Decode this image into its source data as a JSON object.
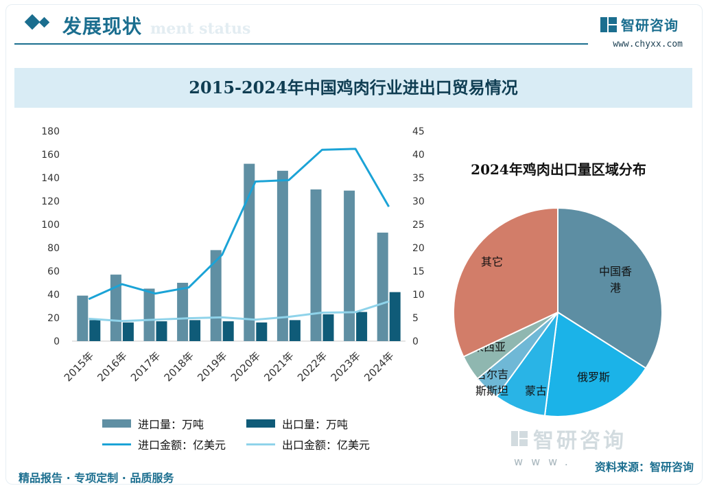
{
  "header": {
    "section_title": "发展现状",
    "section_subtitle": "ment status",
    "brand": "智研咨询",
    "url": "www.chyxx.com"
  },
  "footer": {
    "slogan": "精品报告 · 专项定制 · 品质服务",
    "source": "资料来源：智研咨询",
    "watermark_brand": "智研咨询",
    "watermark_url": "www."
  },
  "colors": {
    "import_volume": "#5f8fa3",
    "export_volume": "#0f5b78",
    "import_value": "#1ba3d6",
    "export_value": "#8fd3ea",
    "accent": "#1b6e8f"
  },
  "chart_data": [
    {
      "type": "bar",
      "title": "2015-2024年中国鸡肉行业进出口贸易情况",
      "categories": [
        "2015年",
        "2016年",
        "2017年",
        "2018年",
        "2019年",
        "2020年",
        "2021年",
        "2022年",
        "2023年",
        "2024年"
      ],
      "ylim": [
        0,
        180
      ],
      "yticks": [
        0,
        20,
        40,
        60,
        80,
        100,
        120,
        140,
        160,
        180
      ],
      "y2lim": [
        0,
        45
      ],
      "y2ticks": [
        0,
        5,
        10,
        15,
        20,
        25,
        30,
        35,
        40,
        45
      ],
      "grid": false,
      "legend_position": "bottom",
      "series": [
        {
          "name": "进口量：万吨",
          "kind": "bar",
          "axis": "left",
          "values": [
            39,
            57,
            45,
            50,
            78,
            152,
            146,
            130,
            129,
            93
          ]
        },
        {
          "name": "出口量：万吨",
          "kind": "bar",
          "axis": "left",
          "values": [
            18,
            16,
            17,
            18,
            17,
            16,
            18,
            23,
            25,
            42
          ]
        },
        {
          "name": "进口金额：亿美元",
          "kind": "line",
          "axis": "right",
          "values": [
            9.0,
            12.2,
            10.2,
            11.5,
            18.5,
            34.2,
            34.5,
            41.0,
            41.2,
            28.8
          ]
        },
        {
          "name": "出口金额：亿美元",
          "kind": "line",
          "axis": "right",
          "values": [
            4.8,
            4.3,
            4.6,
            4.9,
            5.1,
            4.6,
            5.2,
            6.1,
            6.2,
            8.5
          ]
        }
      ]
    },
    {
      "type": "pie",
      "title": "2024年鸡肉出口量区域分布",
      "slices": [
        {
          "label": "中国香港",
          "value": 34,
          "color": "#5d8ea3"
        },
        {
          "label": "俄罗斯",
          "value": 18,
          "color": "#1bb3e8"
        },
        {
          "label": "蒙古",
          "value": 8,
          "color": "#29b4e6"
        },
        {
          "label": "吉尔吉斯斯坦",
          "value": 4,
          "color": "#6fb8d6"
        },
        {
          "label": "马来西亚",
          "value": 4,
          "color": "#8fb7b0"
        },
        {
          "label": "其它",
          "value": 32,
          "color": "#d27d69"
        }
      ]
    }
  ]
}
